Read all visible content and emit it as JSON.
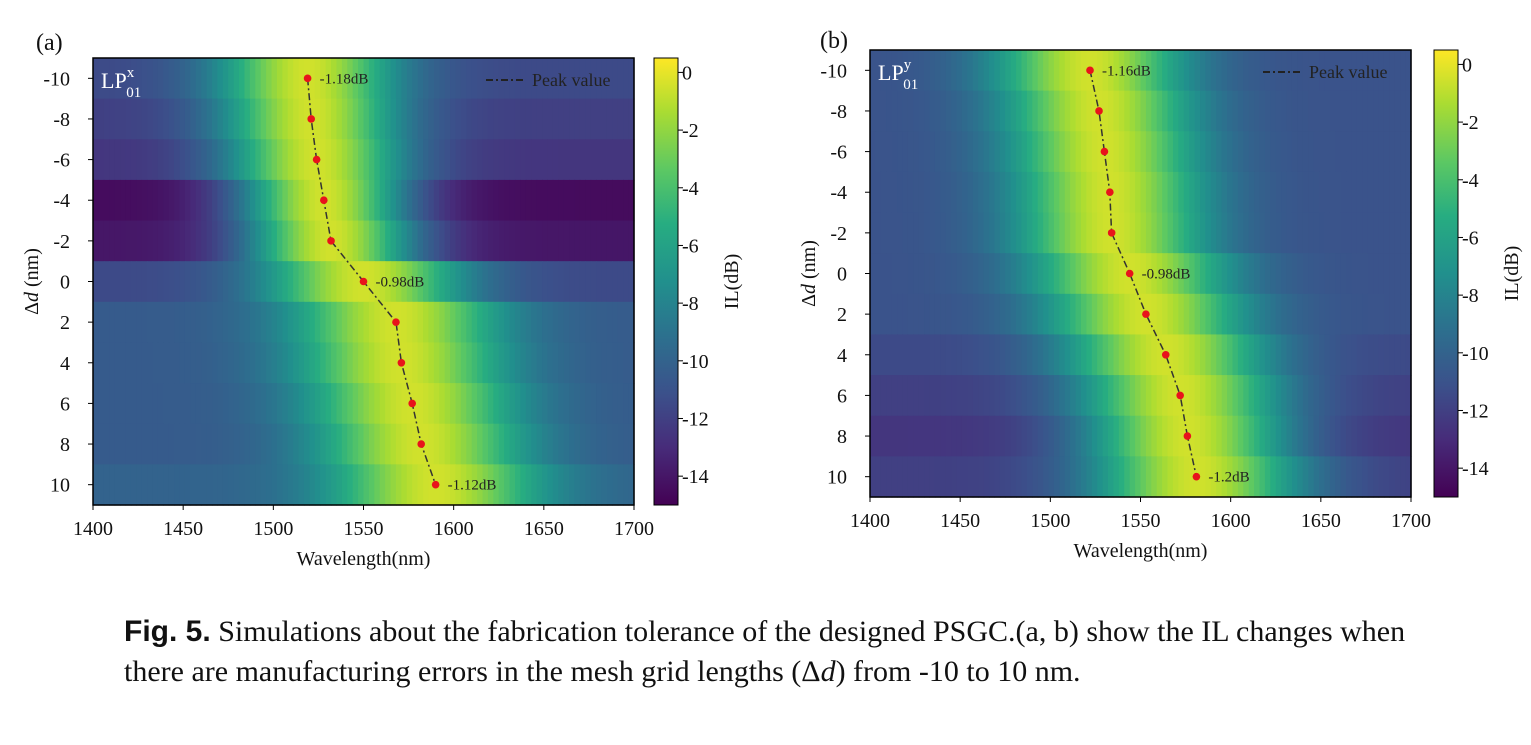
{
  "chart_data": [
    {
      "type": "heatmap",
      "panel_label": "(a)",
      "mode_label": {
        "main": "LP",
        "sup": "x",
        "sub": "01"
      },
      "xlabel": "Wavelength(nm)",
      "ylabel": "Δd (nm)",
      "ylabel_parts": {
        "symbol": "Δ",
        "var": "d",
        "unit": " (nm)"
      },
      "x_ticks": [
        "1400",
        "1450",
        "1500",
        "1550",
        "1600",
        "1650",
        "1700"
      ],
      "y_ticks": [
        "-10",
        "-8",
        "-6",
        "-4",
        "-2",
        "0",
        "2",
        "4",
        "6",
        "8",
        "10"
      ],
      "xlim": [
        1400,
        1700
      ],
      "ylim": [
        -10,
        10
      ],
      "y_inverted": true,
      "colorbar": {
        "label": "IL(dB)",
        "ticks": [
          "0",
          "-2",
          "-4",
          "-6",
          "-8",
          "-10",
          "-12",
          "-14"
        ],
        "range": [
          -15,
          0.5
        ]
      },
      "colormap": "viridis",
      "legend": {
        "entry": "Peak value",
        "placement": "top-right"
      },
      "rows": [
        {
          "dd": -10,
          "peak_wl": 1519,
          "fwhm": 82,
          "min_il": -11.5
        },
        {
          "dd": -8,
          "peak_wl": 1521,
          "fwhm": 82,
          "min_il": -12
        },
        {
          "dd": -6,
          "peak_wl": 1524,
          "fwhm": 82,
          "min_il": -12.5
        },
        {
          "dd": -4,
          "peak_wl": 1528,
          "fwhm": 80,
          "min_il": -14.5
        },
        {
          "dd": -2,
          "peak_wl": 1532,
          "fwhm": 80,
          "min_il": -14
        },
        {
          "dd": 0,
          "peak_wl": 1550,
          "fwhm": 92,
          "min_il": -11.5
        },
        {
          "dd": 2,
          "peak_wl": 1568,
          "fwhm": 96,
          "min_il": -10.5
        },
        {
          "dd": 4,
          "peak_wl": 1571,
          "fwhm": 96,
          "min_il": -10.5
        },
        {
          "dd": 6,
          "peak_wl": 1577,
          "fwhm": 96,
          "min_il": -10.5
        },
        {
          "dd": 8,
          "peak_wl": 1582,
          "fwhm": 96,
          "min_il": -10.5
        },
        {
          "dd": 10,
          "peak_wl": 1590,
          "fwhm": 96,
          "min_il": -10
        }
      ],
      "peak_points": [
        {
          "x": 1519,
          "y": -10
        },
        {
          "x": 1521,
          "y": -8
        },
        {
          "x": 1524,
          "y": -6
        },
        {
          "x": 1528,
          "y": -4
        },
        {
          "x": 1532,
          "y": -2
        },
        {
          "x": 1550,
          "y": 0
        },
        {
          "x": 1568,
          "y": 2
        },
        {
          "x": 1571,
          "y": 4
        },
        {
          "x": 1577,
          "y": 6
        },
        {
          "x": 1582,
          "y": 8
        },
        {
          "x": 1590,
          "y": 10
        }
      ],
      "annotations": [
        {
          "text": "-1.18dB",
          "x": 1519,
          "y": -10
        },
        {
          "text": "-0.98dB",
          "x": 1550,
          "y": 0
        },
        {
          "text": "-1.12dB",
          "x": 1590,
          "y": 10
        }
      ]
    },
    {
      "type": "heatmap",
      "panel_label": "(b)",
      "mode_label": {
        "main": "LP",
        "sup": "y",
        "sub": "01"
      },
      "xlabel": "Wavelength(nm)",
      "ylabel": "Δd (nm)",
      "ylabel_parts": {
        "symbol": "Δ",
        "var": "d",
        "unit": " (nm)"
      },
      "x_ticks": [
        "1400",
        "1450",
        "1500",
        "1550",
        "1600",
        "1650",
        "1700"
      ],
      "y_ticks": [
        "-10",
        "-8",
        "-6",
        "-4",
        "-2",
        "0",
        "2",
        "4",
        "6",
        "8",
        "10"
      ],
      "xlim": [
        1400,
        1700
      ],
      "ylim": [
        -10,
        10
      ],
      "y_inverted": true,
      "colorbar": {
        "label": "IL(dB)",
        "ticks": [
          "0",
          "-2",
          "-4",
          "-6",
          "-8",
          "-10",
          "-12",
          "-14"
        ],
        "range": [
          -15,
          0.5
        ]
      },
      "colormap": "viridis",
      "legend": {
        "entry": "Peak value",
        "placement": "top-right"
      },
      "rows": [
        {
          "dd": -10,
          "peak_wl": 1522,
          "fwhm": 88,
          "min_il": -11
        },
        {
          "dd": -8,
          "peak_wl": 1527,
          "fwhm": 88,
          "min_il": -11
        },
        {
          "dd": -6,
          "peak_wl": 1530,
          "fwhm": 88,
          "min_il": -11
        },
        {
          "dd": -4,
          "peak_wl": 1533,
          "fwhm": 88,
          "min_il": -11
        },
        {
          "dd": -2,
          "peak_wl": 1534,
          "fwhm": 88,
          "min_il": -11
        },
        {
          "dd": 0,
          "peak_wl": 1544,
          "fwhm": 92,
          "min_il": -11
        },
        {
          "dd": 2,
          "peak_wl": 1553,
          "fwhm": 92,
          "min_il": -11
        },
        {
          "dd": 4,
          "peak_wl": 1564,
          "fwhm": 94,
          "min_il": -11.5
        },
        {
          "dd": 6,
          "peak_wl": 1572,
          "fwhm": 94,
          "min_il": -12
        },
        {
          "dd": 8,
          "peak_wl": 1576,
          "fwhm": 94,
          "min_il": -12.5
        },
        {
          "dd": 10,
          "peak_wl": 1581,
          "fwhm": 96,
          "min_il": -12
        }
      ],
      "peak_points": [
        {
          "x": 1522,
          "y": -10
        },
        {
          "x": 1527,
          "y": -8
        },
        {
          "x": 1530,
          "y": -6
        },
        {
          "x": 1533,
          "y": -4
        },
        {
          "x": 1534,
          "y": -2
        },
        {
          "x": 1544,
          "y": 0
        },
        {
          "x": 1553,
          "y": 2
        },
        {
          "x": 1564,
          "y": 4
        },
        {
          "x": 1572,
          "y": 6
        },
        {
          "x": 1576,
          "y": 8
        },
        {
          "x": 1581,
          "y": 10
        }
      ],
      "annotations": [
        {
          "text": "-1.16dB",
          "x": 1522,
          "y": -10
        },
        {
          "text": "-0.98dB",
          "x": 1544,
          "y": 0
        },
        {
          "text": "-1.2dB",
          "x": 1581,
          "y": 10
        }
      ]
    }
  ],
  "caption": {
    "label": "Fig. 5.",
    "text_1": " Simulations about the fabrication tolerance of the designed PSGC.(a, b) show the IL changes when there are manufacturing errors in the mesh grid lengths (Δ",
    "italic": "d",
    "text_2": ") from -10 to 10 nm."
  }
}
